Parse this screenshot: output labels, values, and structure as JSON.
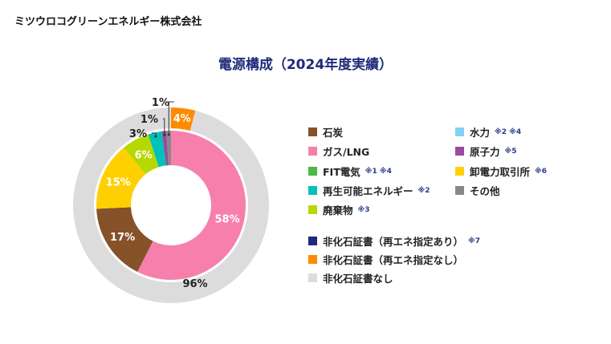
{
  "company": "ミツウロコグリーンエネルギー株式会社",
  "chart_data": {
    "type": "pie",
    "title": "電源構成（2024年度実績）",
    "inner_ring": {
      "name": "電源構成",
      "slices": [
        {
          "label": "ガス/LNG",
          "value": 58,
          "color": "#f77fab",
          "text": "58%"
        },
        {
          "label": "石炭",
          "value": 17,
          "color": "#86522a",
          "text": "17%"
        },
        {
          "label": "卸電力取引所",
          "value": 15,
          "color": "#ffd000",
          "text": "15%"
        },
        {
          "label": "廃棄物",
          "value": 6,
          "color": "#b5d800",
          "text": "6%"
        },
        {
          "label": "再生可能エネルギー",
          "value": 3,
          "color": "#00c2b8",
          "text": "3%"
        },
        {
          "label": "原子力",
          "value": 1,
          "color": "#9b4a9e",
          "text": "1%"
        },
        {
          "label": "その他",
          "value": 1,
          "color": "#888888",
          "text": "1%"
        }
      ]
    },
    "outer_ring": {
      "name": "非化石証書",
      "slices": [
        {
          "label": "非化石証書（再エネ指定なし）",
          "value": 4,
          "color": "#ff8a00",
          "text": "4%"
        },
        {
          "label": "非化石証書なし",
          "value": 96,
          "color": "#dcdcdc",
          "text": "96%"
        }
      ]
    }
  },
  "legend": [
    {
      "label": "石炭",
      "note": "",
      "color": "#86522a"
    },
    {
      "label": "水力",
      "note": "※2 ※4",
      "color": "#7fd3f7"
    },
    {
      "label": "ガス/LNG",
      "note": "",
      "color": "#f77fab"
    },
    {
      "label": "原子力",
      "note": "※5",
      "color": "#9b4a9e"
    },
    {
      "label": "FIT電気",
      "note": "※1 ※4",
      "color": "#4cb848"
    },
    {
      "label": "卸電力取引所",
      "note": "※6",
      "color": "#ffd000"
    },
    {
      "label": "再生可能エネルギー",
      "note": "※2",
      "color": "#00c2b8"
    },
    {
      "label": "その他",
      "note": "",
      "color": "#888888"
    },
    {
      "label": "廃棄物",
      "note": "※3",
      "color": "#b5d800"
    },
    {
      "label": "非化石証書（再エネ指定あり）",
      "note": "※7",
      "color": "#1f2a7a"
    },
    {
      "label": "非化石証書（再エネ指定なし）",
      "note": "",
      "color": "#ff8a00"
    },
    {
      "label": "非化石証書なし",
      "note": "",
      "color": "#dcdcdc"
    }
  ]
}
